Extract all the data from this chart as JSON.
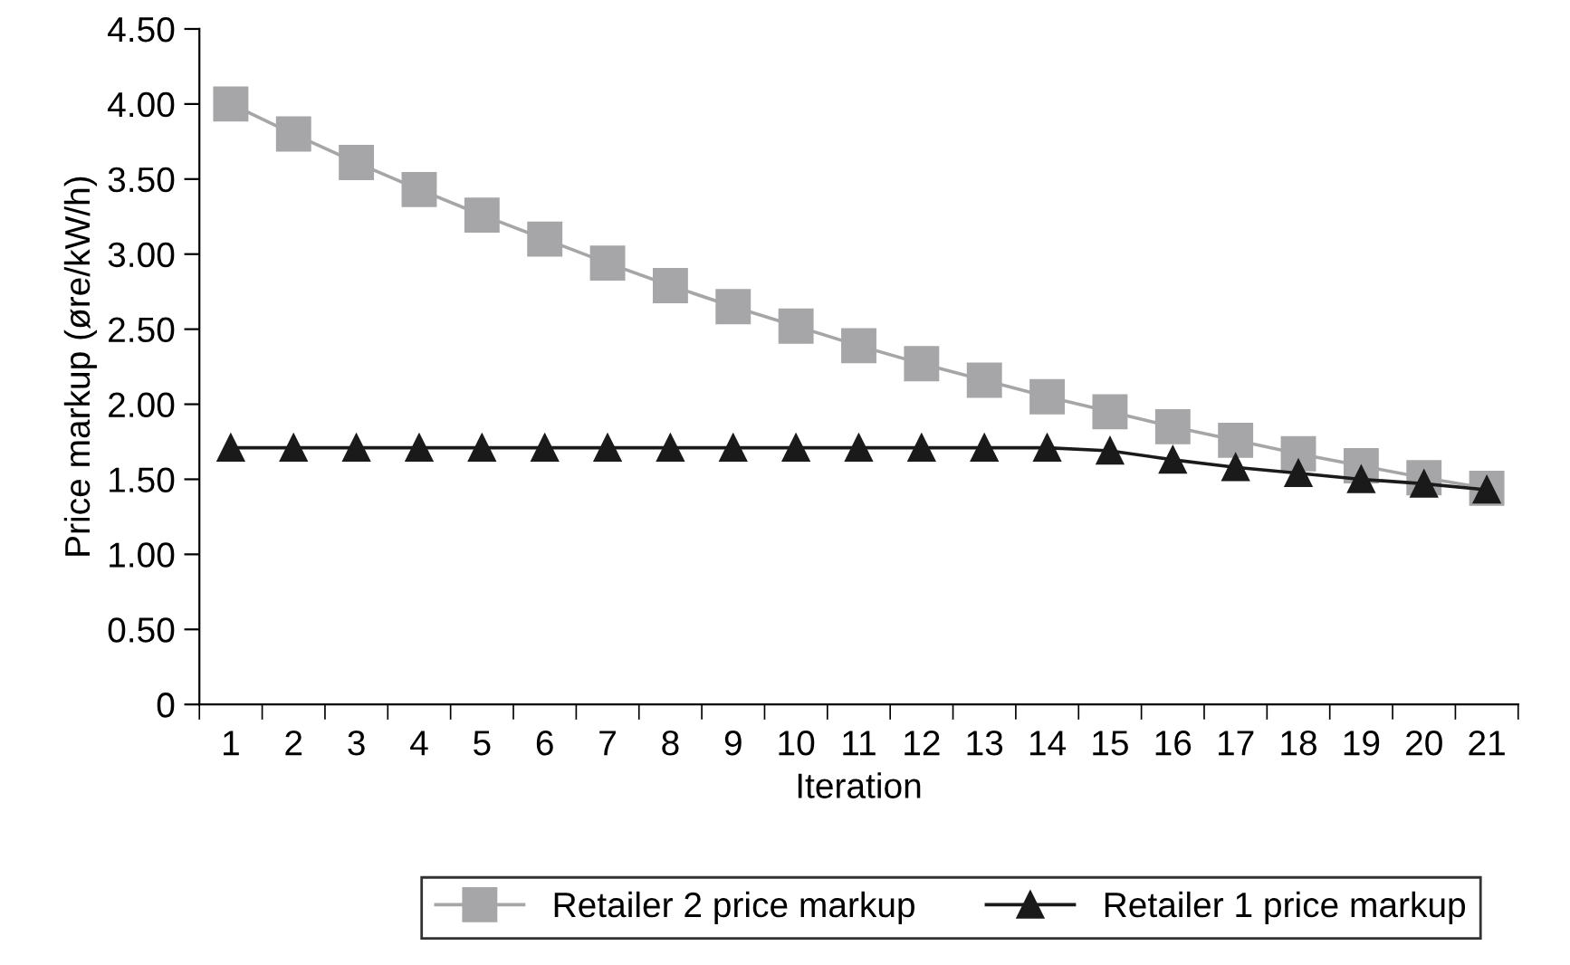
{
  "chart_data": {
    "type": "line",
    "xlabel": "Iteration",
    "ylabel": "Price markup (øre/kW/h)",
    "categories": [
      "1",
      "2",
      "3",
      "4",
      "5",
      "6",
      "7",
      "8",
      "9",
      "10",
      "11",
      "12",
      "13",
      "14",
      "15",
      "16",
      "17",
      "18",
      "19",
      "20",
      "21"
    ],
    "series": [
      {
        "name": "Retailer 2 price markup",
        "color": "#a6a6a8",
        "marker": "square",
        "values": [
          4.0,
          3.8,
          3.61,
          3.43,
          3.26,
          3.1,
          2.94,
          2.79,
          2.65,
          2.52,
          2.39,
          2.27,
          2.16,
          2.05,
          1.95,
          1.85,
          1.76,
          1.67,
          1.59,
          1.51,
          1.44
        ]
      },
      {
        "name": "Retailer 1 price markup",
        "color": "#1a1a1a",
        "marker": "triangle",
        "values": [
          1.71,
          1.71,
          1.71,
          1.71,
          1.71,
          1.71,
          1.71,
          1.71,
          1.71,
          1.71,
          1.71,
          1.71,
          1.71,
          1.71,
          1.69,
          1.63,
          1.58,
          1.54,
          1.5,
          1.47,
          1.43
        ]
      }
    ],
    "ylim": [
      0,
      4.5
    ],
    "yticks": [
      0,
      {
        "value": 0.5,
        "label": "0.50"
      },
      {
        "value": 1.0,
        "label": "1.00"
      },
      {
        "value": 1.5,
        "label": "1.50"
      },
      {
        "value": 2.0,
        "label": "2.00"
      },
      {
        "value": 2.5,
        "label": "2.50"
      },
      {
        "value": 3.0,
        "label": "3.00"
      },
      {
        "value": 3.5,
        "label": "3.50"
      },
      {
        "value": 4.0,
        "label": "4.00"
      },
      {
        "value": 4.5,
        "label": "4.50"
      }
    ],
    "grid": false,
    "legend": "bottom",
    "line_style": "solid"
  }
}
